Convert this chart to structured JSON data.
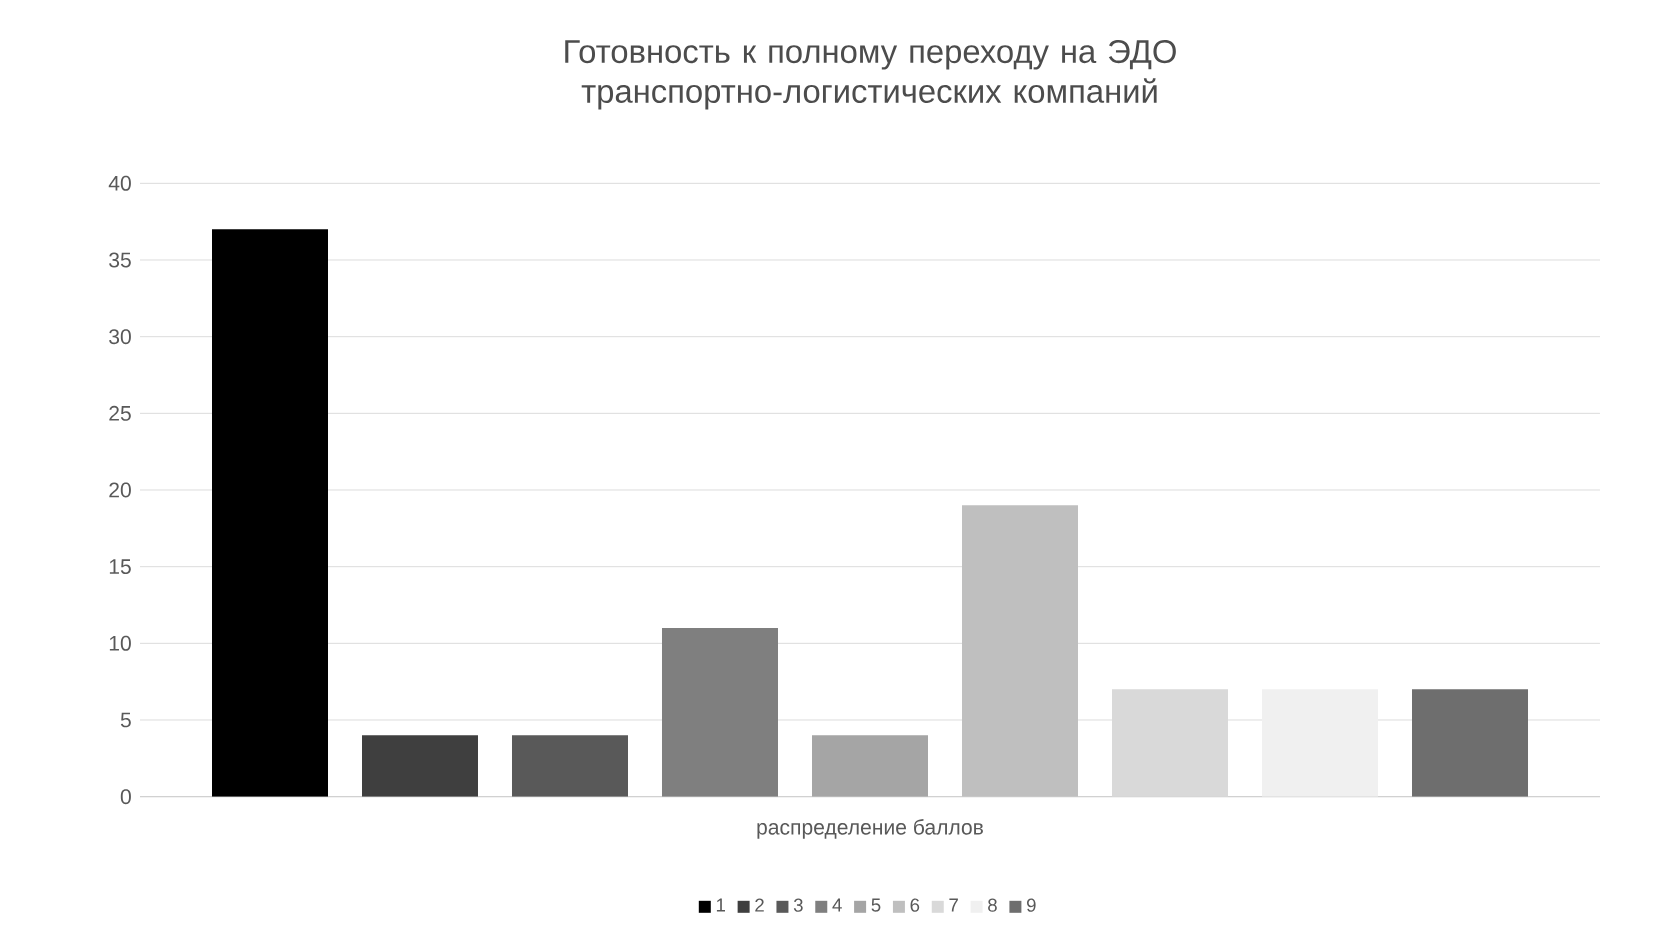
{
  "chart_data": {
    "type": "bar",
    "title": "Готовность к полному переходу на ЭДО транспортно-логистических компаний",
    "categories": [
      "распределение баллов"
    ],
    "series": [
      {
        "name": "1",
        "color": "#000000",
        "values": [
          37
        ]
      },
      {
        "name": "2",
        "color": "#3f3f3f",
        "values": [
          4
        ]
      },
      {
        "name": "3",
        "color": "#595959",
        "values": [
          4
        ]
      },
      {
        "name": "4",
        "color": "#7f7f7f",
        "values": [
          11
        ]
      },
      {
        "name": "5",
        "color": "#a5a5a5",
        "values": [
          4
        ]
      },
      {
        "name": "6",
        "color": "#bfbfbf",
        "values": [
          19
        ]
      },
      {
        "name": "7",
        "color": "#d9d9d9",
        "values": [
          7
        ]
      },
      {
        "name": "8",
        "color": "#f0f0f0",
        "values": [
          7
        ]
      },
      {
        "name": "9",
        "color": "#6e6e6e",
        "values": [
          7
        ]
      }
    ],
    "ylim": [
      0,
      40
    ],
    "yticks": [
      0,
      5,
      10,
      15,
      20,
      25,
      30,
      35,
      40
    ],
    "grid": "y",
    "legend": "bottom"
  }
}
